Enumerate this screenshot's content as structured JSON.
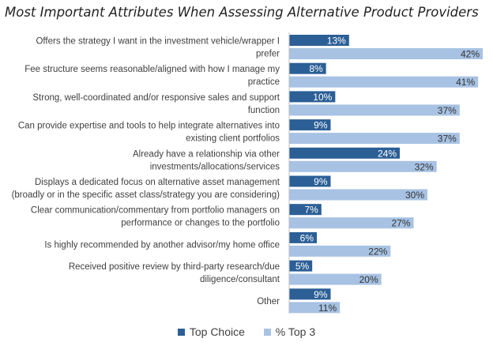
{
  "colors": {
    "top_choice": "#2b5f96",
    "top3": "#a7c2e3",
    "label_dark": "#ffffff",
    "label_light": "#333333"
  },
  "chart_data": {
    "type": "bar",
    "orientation": "horizontal",
    "title": "Most Important Attributes When Assessing Alternative Product Providers",
    "legend_position": "bottom",
    "categories": [
      [
        "Offers the strategy I want in the investment vehicle/wrapper I",
        "prefer"
      ],
      [
        "Fee structure seems reasonable/aligned with how I manage my",
        "practice"
      ],
      [
        "Strong, well-coordinated and/or responsive sales and support",
        "function"
      ],
      [
        "Can provide expertise and tools to help integrate alternatives into",
        "existing client portfolios"
      ],
      [
        "Already have a relationship via other",
        "investments/allocations/services"
      ],
      [
        "Displays a dedicated focus on alternative asset management",
        "(broadly or in the specific asset class/strategy you are considering)"
      ],
      [
        "Clear communication/commentary from portfolio managers on",
        "performance or changes to the portfolio"
      ],
      [
        "Is highly recommended by another advisor/my home office"
      ],
      [
        "Received positive review by third-party research/due",
        "diligence/consultant"
      ],
      [
        "Other"
      ]
    ],
    "series": [
      {
        "name": "Top Choice",
        "values": [
          13,
          8,
          10,
          9,
          24,
          9,
          7,
          6,
          5,
          9
        ],
        "labels": [
          "13%",
          "8%",
          "10%",
          "9%",
          "24%",
          "9%",
          "7%",
          "6%",
          "5%",
          "9%"
        ]
      },
      {
        "name": "% Top 3",
        "values": [
          42,
          41,
          37,
          37,
          32,
          30,
          27,
          22,
          20,
          11
        ],
        "labels": [
          "42%",
          "41%",
          "37%",
          "37%",
          "32%",
          "30%",
          "27%",
          "22%",
          "20%",
          "11%"
        ]
      }
    ],
    "xlim": [
      0,
      42
    ],
    "grid": false
  }
}
